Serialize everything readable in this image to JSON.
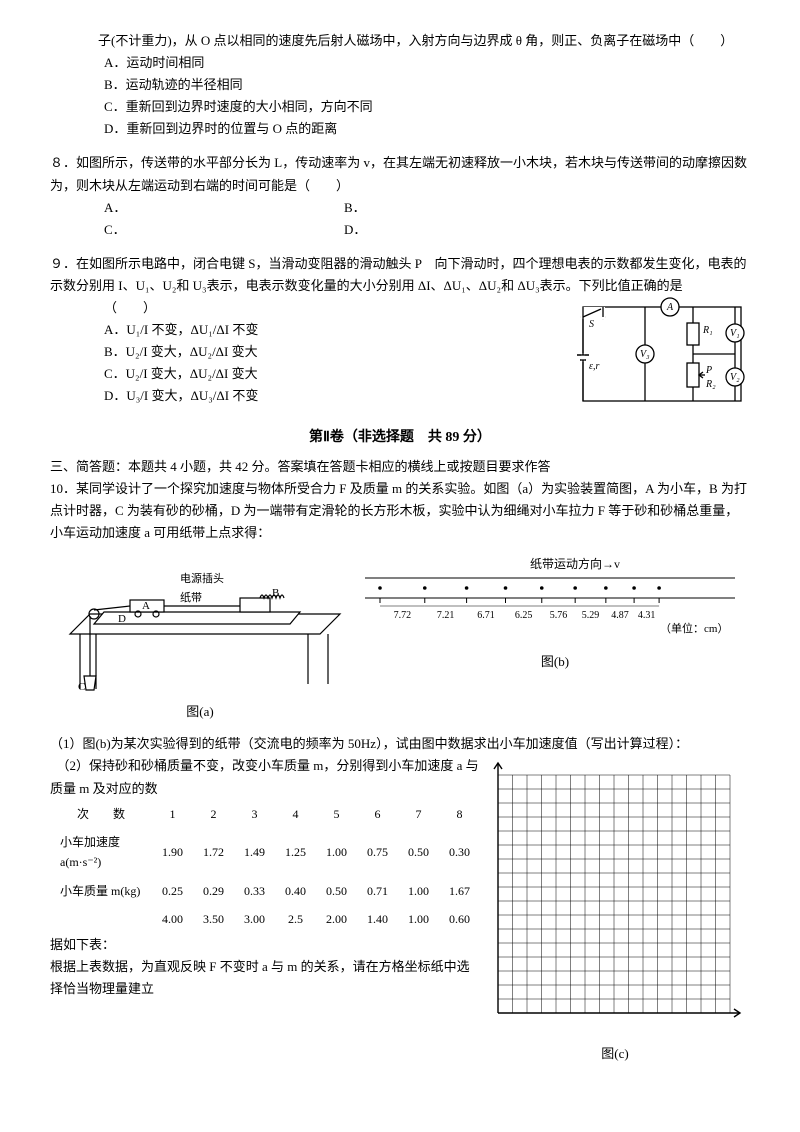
{
  "q7": {
    "stem": "子(不计重力)，从 O 点以相同的速度先后射人磁场中，入射方向与边界成 θ 角，则正、负离子在磁场中（　　）",
    "A": "A．运动时间相同",
    "B": "B．运动轨迹的半径相同",
    "C": "C．重新回到边界时速度的大小相同，方向不同",
    "D": "D．重新回到边界时的位置与 O 点的距离"
  },
  "q8": {
    "label": "８．",
    "stem": "如图所示，传送带的水平部分长为 L，传动速率为 v，在其左端无初速释放一小木块，若木块与传送带间的动摩擦因数为，则木块从左端运动到右端的时间可能是（　　）",
    "A": "A．",
    "B": "B．",
    "C": "C．",
    "D": "D．"
  },
  "q9": {
    "label": "９．",
    "stem1": "在如图所示电路中，闭合电键 S，当滑动变阻器的滑动触头 P　向下滑动时，四个理想电表的示数都发生变化，电表的示数分别用 I、U₁、U₂和 U₃表示，电表示数变化量的大小分别用 ΔI、ΔU₁、ΔU₂和 ΔU₃表示。下列比值正确的是",
    "stem2": "（　　）",
    "A": "A．U₁/I 不变，ΔU₁/ΔI 不变",
    "B": "B．U₂/I 变大，ΔU₂/ΔI 变大",
    "C": "C．U₂/I 变大，ΔU₂/ΔI 变大",
    "D": "D．U₃/I 变大，ΔU₃/ΔI 不变"
  },
  "section2": {
    "title": "第Ⅱ卷（非选择题　共 89 分）",
    "intro": "三、简答题：本题共 4 小题，共 42 分。答案填在答题卡相应的横线上或按题目要求作答",
    "q10": "10．某同学设计了一个探究加速度与物体所受合力 F 及质量 m 的关系实验。如图（a）为实验装置简图，A 为小车，B 为打点计时器，C 为装有砂的砂桶，D 为一端带有定滑轮的长方形木板，实验中认为细绳对小车拉力 F 等于砂和砂桶总重量，小车运动加速度 a 可用纸带上点求得：",
    "fig_a_labels": {
      "plug": "电源插头",
      "tape": "纸带",
      "A": "A",
      "B": "B",
      "C": "C",
      "D": "D"
    },
    "fig_b": {
      "arrow": "纸带运动方向→v",
      "unit": "（单位：cm）",
      "d": [
        "7.72",
        "7.21",
        "6.71",
        "6.25",
        "5.76",
        "5.29",
        "4.87",
        "4.31"
      ]
    },
    "cap_a": "图(a)",
    "cap_b": "图(b)",
    "cap_c": "图(c)",
    "p1": "（1）图(b)为某次实验得到的纸带（交流电的频率为 50Hz），试由图中数据求出小车加速度值（写出计算过程）：",
    "p2a": "　（2）保持砂和砂桶质量不变，改变小车质量 m，分别得到小车加速度 a 与质量 m 及对应的数",
    "table": {
      "h1": "次　　数",
      "h2": "小车加速度 a(m·s⁻²)",
      "h3": "小车质量 m(kg)",
      "h4": "",
      "cols": [
        "1",
        "2",
        "3",
        "4",
        "5",
        "6",
        "7",
        "8"
      ],
      "a": [
        "1.90",
        "1.72",
        "1.49",
        "1.25",
        "1.00",
        "0.75",
        "0.50",
        "0.30"
      ],
      "m": [
        "0.25",
        "0.29",
        "0.33",
        "0.40",
        "0.50",
        "0.71",
        "1.00",
        "1.67"
      ],
      "r": [
        "4.00",
        "3.50",
        "3.00",
        "2.5",
        "2.00",
        "1.40",
        "1.00",
        "0.60"
      ]
    },
    "p3": "据如下表：",
    "p4": "根据上表数据，为直观反映 F 不变时 a 与 m 的关系，请在方格坐标纸中选择恰当物理量建立"
  },
  "circuit": {
    "labels": {
      "A": "A",
      "V1": "V₁",
      "V2": "V₂",
      "V3": "V₃",
      "R1": "R₁",
      "R2": "R₂",
      "S": "S",
      "Er": "ε,r",
      "P": "P"
    }
  }
}
